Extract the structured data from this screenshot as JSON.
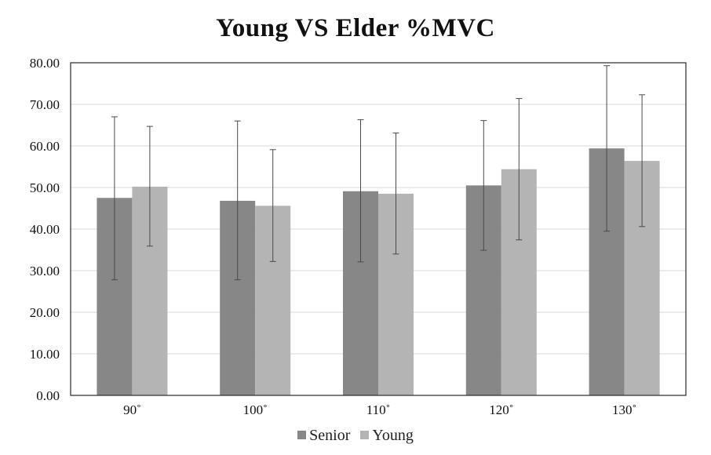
{
  "chart_data": {
    "type": "bar",
    "title": "Young VS Elder %MVC",
    "xlabel": "",
    "ylabel": "",
    "categories": [
      "90˚",
      "100˚",
      "110˚",
      "120˚",
      "130˚"
    ],
    "ylim": [
      0,
      80
    ],
    "yticks": [
      "0.00",
      "10.00",
      "20.00",
      "30.00",
      "40.00",
      "50.00",
      "60.00",
      "70.00",
      "80.00"
    ],
    "grid": true,
    "legend_position": "bottom",
    "series": [
      {
        "name": "Senior",
        "color": "#878787",
        "values": [
          47.5,
          46.8,
          49.1,
          50.5,
          59.4
        ],
        "error_high": [
          67.0,
          66.0,
          66.3,
          66.1,
          79.3
        ],
        "error_low": [
          27.8,
          27.8,
          32.1,
          34.9,
          39.5
        ]
      },
      {
        "name": "Young",
        "color": "#b4b4b4",
        "values": [
          50.2,
          45.6,
          48.5,
          54.4,
          56.4
        ],
        "error_high": [
          64.7,
          59.1,
          63.1,
          71.4,
          72.3
        ],
        "error_low": [
          35.9,
          32.2,
          34.0,
          37.4,
          40.6
        ]
      }
    ]
  }
}
